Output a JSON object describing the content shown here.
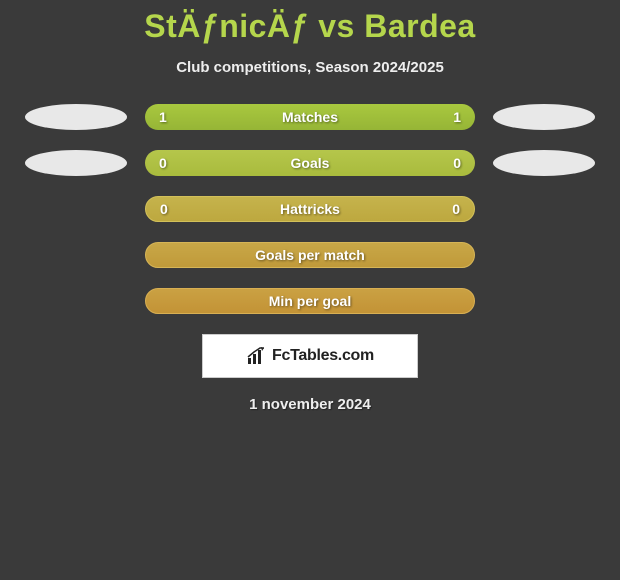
{
  "header": {
    "title": "StÄƒnicÄƒ vs Bardea",
    "subtitle": "Club competitions, Season 2024/2025"
  },
  "rows": [
    {
      "label": "Matches",
      "left": "1",
      "right": "1",
      "bar_class": "bar-row-1",
      "show_left_ellipse": true,
      "show_right_ellipse": true
    },
    {
      "label": "Goals",
      "left": "0",
      "right": "0",
      "bar_class": "bar-row-2",
      "show_left_ellipse": true,
      "show_right_ellipse": true
    },
    {
      "label": "Hattricks",
      "left": "0",
      "right": "0",
      "bar_class": "bar-row-3",
      "show_left_ellipse": false,
      "show_right_ellipse": false
    },
    {
      "label": "Goals per match",
      "left": "",
      "right": "",
      "bar_class": "bar-row-4",
      "show_left_ellipse": false,
      "show_right_ellipse": false
    },
    {
      "label": "Min per goal",
      "left": "",
      "right": "",
      "bar_class": "bar-row-5",
      "show_left_ellipse": false,
      "show_right_ellipse": false
    }
  ],
  "brand": {
    "icon_name": "bar-chart-icon",
    "text": "FcTables.com"
  },
  "date": "1 november 2024",
  "colors": {
    "background": "#3a3a3a",
    "accent": "#b5d64c"
  }
}
